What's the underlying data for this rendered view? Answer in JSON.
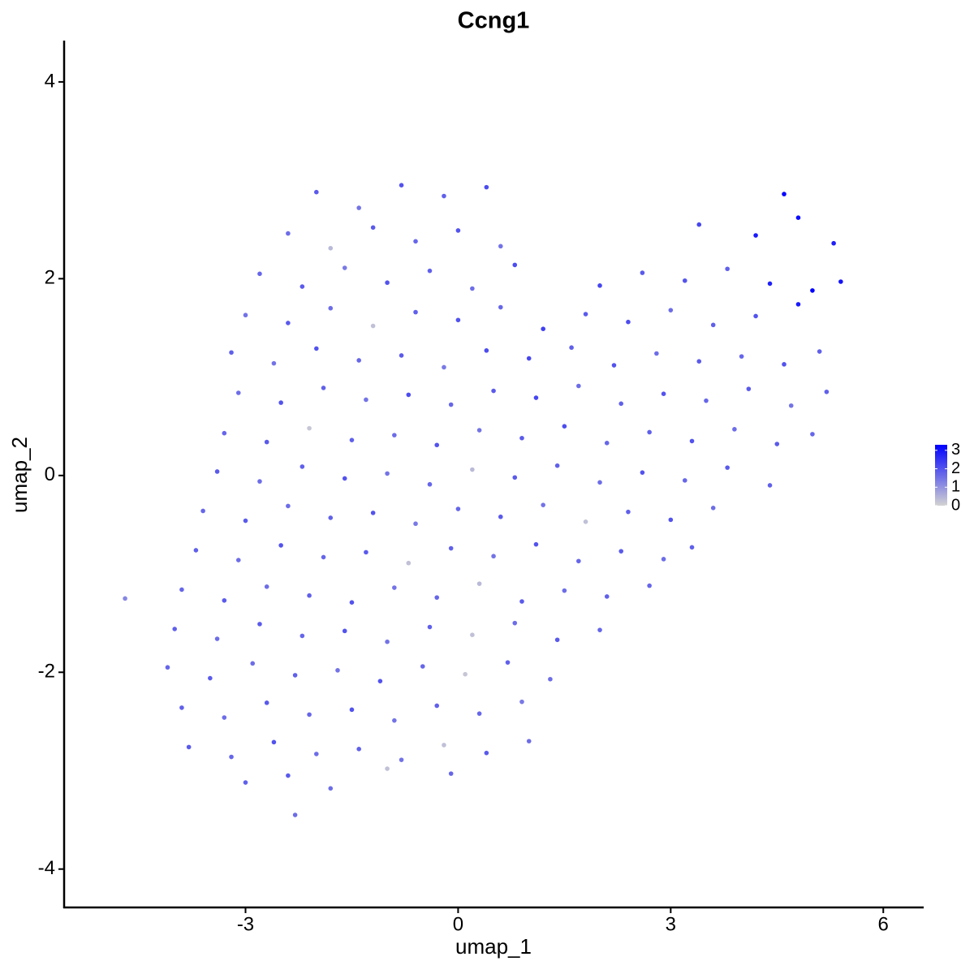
{
  "chart_data": {
    "type": "scatter",
    "title": "Ccng1",
    "x_label": "umap_1",
    "y_label": "umap_2",
    "x": [
      -2.0,
      -1.4,
      -0.8,
      -0.2,
      0.4,
      4.6,
      -2.4,
      -1.8,
      -1.2,
      -0.6,
      0.0,
      0.6,
      3.4,
      4.2,
      4.8,
      5.3,
      -2.8,
      -2.2,
      -1.6,
      -1.0,
      -0.4,
      0.2,
      0.8,
      2.0,
      2.6,
      3.2,
      3.8,
      4.4,
      5.0,
      5.4,
      -3.0,
      -2.4,
      -1.8,
      -1.2,
      -0.6,
      0.0,
      0.6,
      1.2,
      1.8,
      2.4,
      3.0,
      3.6,
      4.2,
      4.8,
      -3.2,
      -2.6,
      -2.0,
      -1.4,
      -0.8,
      -0.2,
      0.4,
      1.0,
      1.6,
      2.2,
      2.8,
      3.4,
      4.0,
      4.6,
      5.1,
      -3.1,
      -2.5,
      -1.9,
      -1.3,
      -0.7,
      -0.1,
      0.5,
      1.1,
      1.7,
      2.3,
      2.9,
      3.5,
      4.1,
      4.7,
      5.2,
      -3.3,
      -2.7,
      -2.1,
      -1.5,
      -0.9,
      -0.3,
      0.3,
      0.9,
      1.5,
      2.1,
      2.7,
      3.3,
      3.9,
      4.5,
      5.0,
      -3.4,
      -2.8,
      -2.2,
      -1.6,
      -1.0,
      -0.4,
      0.2,
      0.8,
      1.4,
      2.0,
      2.6,
      3.2,
      3.8,
      4.4,
      -3.6,
      -3.0,
      -2.4,
      -1.8,
      -1.2,
      -0.6,
      0.0,
      0.6,
      1.2,
      1.8,
      2.4,
      3.0,
      3.6,
      -3.7,
      -3.1,
      -2.5,
      -1.9,
      -1.3,
      -0.7,
      -0.1,
      0.5,
      1.1,
      1.7,
      2.3,
      2.9,
      3.3,
      -4.7,
      -3.9,
      -3.3,
      -2.7,
      -2.1,
      -1.5,
      -0.9,
      -0.3,
      0.3,
      0.9,
      1.5,
      2.1,
      2.7,
      -4.0,
      -3.4,
      -2.8,
      -2.2,
      -1.6,
      -1.0,
      -0.4,
      0.2,
      0.8,
      1.4,
      2.0,
      -4.1,
      -3.5,
      -2.9,
      -2.3,
      -1.7,
      -1.1,
      -0.5,
      0.1,
      0.7,
      1.3,
      -3.9,
      -3.3,
      -2.7,
      -2.1,
      -1.5,
      -0.9,
      -0.3,
      0.3,
      0.9,
      -3.8,
      -3.2,
      -2.6,
      -2.0,
      -1.4,
      -0.8,
      -0.2,
      0.4,
      1.0,
      -3.0,
      -2.4,
      -1.8,
      -1.0,
      -0.1,
      -2.3
    ],
    "y": [
      2.88,
      2.72,
      2.95,
      2.84,
      2.93,
      2.86,
      2.46,
      2.31,
      2.52,
      2.38,
      2.49,
      2.33,
      2.55,
      2.44,
      2.62,
      2.36,
      2.05,
      1.92,
      2.11,
      1.96,
      2.08,
      1.9,
      2.14,
      1.93,
      2.06,
      1.98,
      2.1,
      1.95,
      1.88,
      1.97,
      1.63,
      1.55,
      1.7,
      1.52,
      1.66,
      1.58,
      1.71,
      1.49,
      1.64,
      1.56,
      1.68,
      1.53,
      1.62,
      1.74,
      1.25,
      1.14,
      1.29,
      1.17,
      1.22,
      1.1,
      1.27,
      1.19,
      1.3,
      1.12,
      1.24,
      1.16,
      1.21,
      1.13,
      1.26,
      0.84,
      0.74,
      0.89,
      0.77,
      0.82,
      0.72,
      0.86,
      0.79,
      0.91,
      0.73,
      0.83,
      0.76,
      0.88,
      0.71,
      0.85,
      0.43,
      0.34,
      0.48,
      0.36,
      0.41,
      0.31,
      0.46,
      0.38,
      0.5,
      0.33,
      0.44,
      0.35,
      0.47,
      0.32,
      0.42,
      0.04,
      -0.06,
      0.09,
      -0.03,
      0.02,
      -0.09,
      0.06,
      -0.02,
      0.1,
      -0.07,
      0.03,
      -0.05,
      0.08,
      -0.1,
      -0.36,
      -0.46,
      -0.31,
      -0.43,
      -0.38,
      -0.49,
      -0.34,
      -0.42,
      -0.3,
      -0.47,
      -0.37,
      -0.45,
      -0.33,
      -0.76,
      -0.86,
      -0.71,
      -0.83,
      -0.78,
      -0.89,
      -0.74,
      -0.82,
      -0.7,
      -0.87,
      -0.77,
      -0.85,
      -0.73,
      -1.25,
      -1.16,
      -1.27,
      -1.13,
      -1.22,
      -1.29,
      -1.14,
      -1.24,
      -1.1,
      -1.28,
      -1.17,
      -1.23,
      -1.12,
      -1.56,
      -1.66,
      -1.51,
      -1.63,
      -1.58,
      -1.69,
      -1.54,
      -1.62,
      -1.5,
      -1.67,
      -1.57,
      -1.95,
      -2.06,
      -1.91,
      -2.03,
      -1.98,
      -2.09,
      -1.94,
      -2.02,
      -1.9,
      -2.07,
      -2.36,
      -2.46,
      -2.31,
      -2.43,
      -2.38,
      -2.49,
      -2.34,
      -2.42,
      -2.3,
      -2.76,
      -2.86,
      -2.71,
      -2.83,
      -2.78,
      -2.89,
      -2.74,
      -2.82,
      -2.7,
      -3.12,
      -3.05,
      -3.18,
      -2.98,
      -3.03,
      -3.45
    ],
    "expression": [
      1.9,
      1.5,
      2.0,
      1.8,
      2.1,
      3.2,
      1.6,
      0.4,
      1.9,
      1.7,
      2.0,
      1.5,
      2.2,
      2.9,
      3.1,
      2.8,
      1.7,
      1.9,
      1.4,
      2.0,
      1.8,
      1.6,
      2.1,
      2.2,
      1.9,
      2.0,
      1.8,
      2.8,
      3.3,
      3.0,
      1.5,
      1.9,
      1.6,
      0.3,
      1.8,
      2.0,
      1.7,
      2.3,
      1.9,
      2.1,
      1.6,
      1.8,
      2.0,
      2.9,
      1.8,
      1.5,
      2.0,
      1.7,
      1.9,
      1.4,
      2.1,
      2.2,
      1.8,
      2.0,
      1.6,
      1.9,
      1.7,
      2.0,
      1.8,
      1.6,
      2.0,
      1.8,
      1.5,
      2.1,
      1.7,
      1.9,
      2.2,
      1.6,
      1.8,
      2.0,
      1.7,
      1.9,
      1.5,
      1.8,
      1.7,
      1.9,
      0.2,
      1.8,
      1.6,
      2.0,
      1.5,
      1.9,
      2.1,
      1.7,
      1.8,
      2.0,
      1.6,
      1.9,
      1.7,
      1.9,
      1.6,
      1.8,
      2.0,
      1.5,
      1.7,
      0.4,
      1.9,
      1.8,
      1.6,
      2.0,
      1.7,
      1.9,
      1.8,
      1.7,
      1.9,
      1.6,
      1.8,
      2.0,
      1.4,
      1.7,
      1.9,
      1.5,
      0.3,
      1.8,
      2.0,
      1.6,
      1.8,
      1.6,
      2.0,
      1.7,
      1.9,
      0.3,
      1.8,
      1.5,
      2.0,
      1.7,
      1.9,
      1.6,
      1.8,
      1.2,
      1.7,
      1.9,
      1.6,
      1.8,
      2.0,
      1.5,
      1.7,
      0.4,
      1.9,
      1.6,
      1.8,
      1.7,
      1.8,
      1.6,
      1.9,
      1.7,
      2.0,
      1.5,
      1.8,
      0.3,
      1.6,
      1.9,
      1.7,
      1.7,
      1.9,
      1.6,
      1.8,
      1.5,
      2.0,
      1.7,
      0.2,
      1.8,
      1.6,
      1.8,
      1.6,
      1.9,
      1.7,
      2.0,
      1.5,
      1.8,
      1.7,
      1.4,
      1.9,
      1.7,
      2.0,
      1.6,
      1.8,
      1.5,
      0.3,
      1.9,
      1.6,
      1.8,
      1.9,
      1.6,
      0.3,
      1.7,
      1.6
    ],
    "xlim": [
      -5.56,
      6.57
    ],
    "ylim": [
      -4.39,
      4.42
    ],
    "xticks": [
      -3,
      0,
      3,
      6
    ],
    "yticks": [
      -4,
      -2,
      0,
      2,
      4
    ],
    "colorbar": {
      "colors": [
        "#d3d3d3",
        "#0000ff"
      ],
      "lim": [
        0,
        3.3
      ],
      "ticks": [
        0,
        1,
        2,
        3
      ]
    }
  }
}
